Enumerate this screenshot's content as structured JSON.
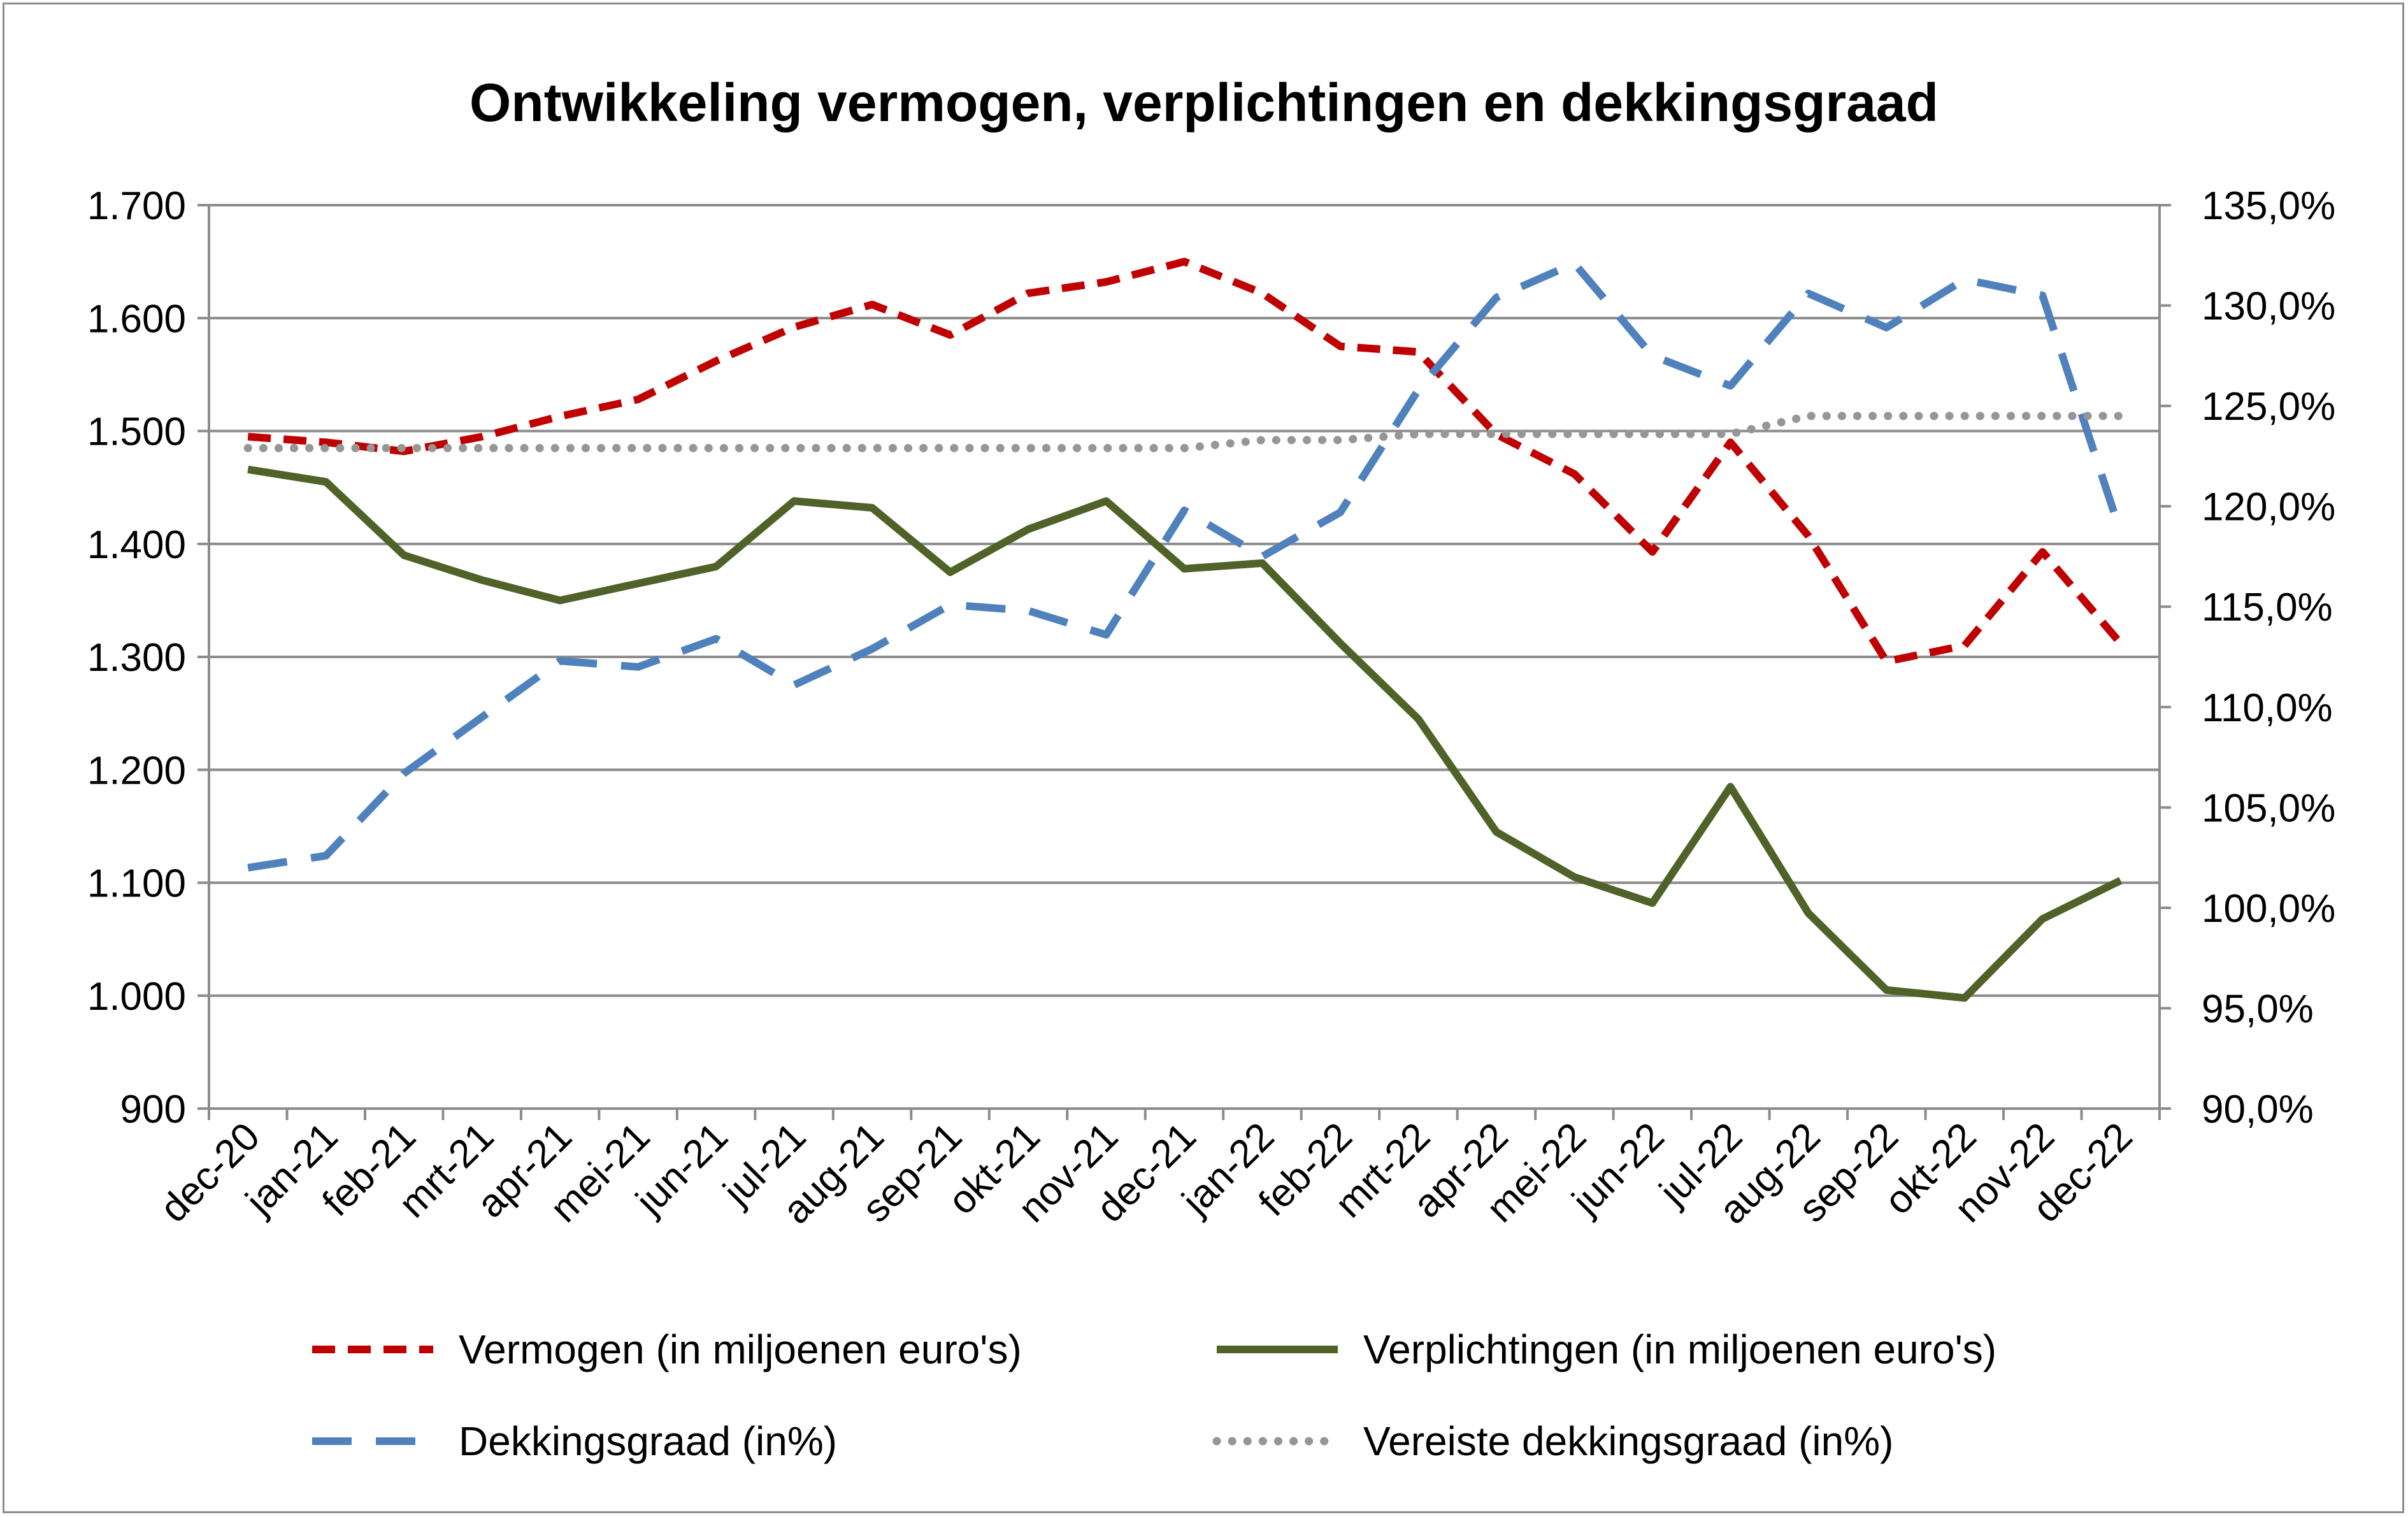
{
  "chart_data": {
    "type": "line",
    "title": "Ontwikkeling vermogen, verplichtingen en dekkingsgraad",
    "categories": [
      "dec-20",
      "jan-21",
      "feb-21",
      "mrt-21",
      "apr-21",
      "mei-21",
      "jun-21",
      "jul-21",
      "aug-21",
      "sep-21",
      "okt-21",
      "nov-21",
      "dec-21",
      "jan-22",
      "feb-22",
      "mrt-22",
      "apr-22",
      "mei-22",
      "jun-22",
      "jul-22",
      "aug-22",
      "sep-22",
      "okt-22",
      "nov-22",
      "dec-22"
    ],
    "y_left": {
      "ylim": [
        900,
        1700
      ],
      "ticks": [
        900,
        1000,
        1100,
        1200,
        1300,
        1400,
        1500,
        1600,
        1700
      ],
      "tick_labels": [
        "900",
        "1.000",
        "1.100",
        "1.200",
        "1.300",
        "1.400",
        "1.500",
        "1.600",
        "1.700"
      ]
    },
    "y_right": {
      "ylim": [
        90,
        135
      ],
      "ticks": [
        90,
        95,
        100,
        105,
        110,
        115,
        120,
        125,
        130,
        135
      ],
      "tick_labels": [
        "90,0%",
        "95,0%",
        "100,0%",
        "105,0%",
        "110,0%",
        "115,0%",
        "120,0%",
        "125,0%",
        "130,0%",
        "135,0%"
      ]
    },
    "grid": true,
    "legend_position": "bottom",
    "series": [
      {
        "name": "Vermogen (in miljoenen euro's)",
        "axis": "left",
        "style": "dashed",
        "color": "#c00000",
        "values": [
          1495,
          1490,
          1482,
          1495,
          1513,
          1528,
          1562,
          1592,
          1612,
          1585,
          1622,
          1632,
          1650,
          1622,
          1575,
          1570,
          1497,
          1462,
          1393,
          1490,
          1407,
          1296,
          1310,
          1393,
          1312
        ]
      },
      {
        "name": "Verplichtingen (in miljoenen euro's)",
        "axis": "left",
        "style": "solid",
        "color": "#4f6228",
        "values": [
          1466,
          1455,
          1390,
          1368,
          1350,
          1365,
          1380,
          1438,
          1432,
          1375,
          1413,
          1438,
          1378,
          1383,
          1312,
          1245,
          1145,
          1105,
          1082,
          1185,
          1073,
          1005,
          998,
          1068,
          1102
        ]
      },
      {
        "name": "Dekkingsgraad (in%)",
        "axis": "right",
        "style": "longdash",
        "color": "#4f81bd",
        "values": [
          102.0,
          102.6,
          106.7,
          109.5,
          112.3,
          112.0,
          113.4,
          111.1,
          112.9,
          115.1,
          114.8,
          113.6,
          119.8,
          117.5,
          119.7,
          125.8,
          130.4,
          132.1,
          127.5,
          126.0,
          130.6,
          128.9,
          131.3,
          130.5,
          118.7
        ]
      },
      {
        "name": "Vereiste dekkingsgraad (in%)",
        "axis": "right",
        "style": "dotted",
        "color": "#969696",
        "values": [
          122.9,
          122.9,
          122.9,
          122.9,
          122.9,
          122.9,
          122.9,
          122.9,
          122.9,
          122.9,
          122.9,
          122.9,
          122.9,
          123.3,
          123.3,
          123.6,
          123.6,
          123.6,
          123.6,
          123.6,
          124.5,
          124.5,
          124.5,
          124.5,
          124.5
        ]
      }
    ]
  }
}
